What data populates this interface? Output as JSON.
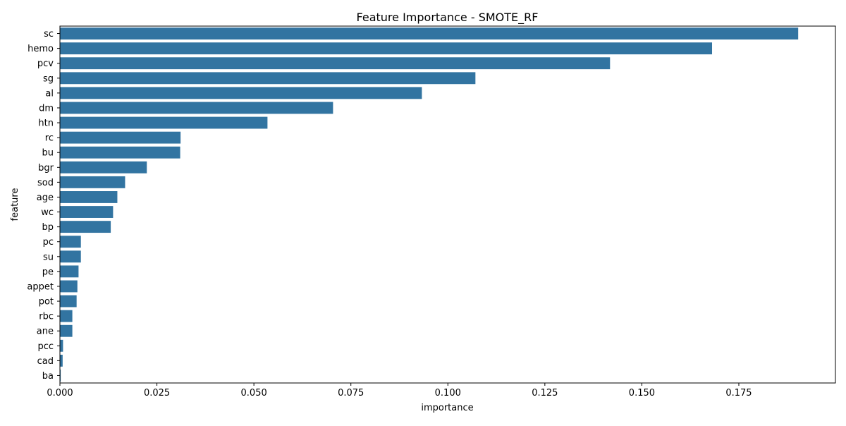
{
  "chart_data": {
    "type": "bar",
    "orientation": "horizontal",
    "title": "Feature Importance - SMOTE_RF",
    "xlabel": "importance",
    "ylabel": "feature",
    "xlim": [
      0,
      0.1999
    ],
    "xticks": [
      0.0,
      0.025,
      0.05,
      0.075,
      0.1,
      0.125,
      0.15,
      0.175
    ],
    "xtick_labels": [
      "0.000",
      "0.025",
      "0.050",
      "0.075",
      "0.100",
      "0.125",
      "0.150",
      "0.175"
    ],
    "grid": false,
    "bar_color": "#3274a1",
    "categories": [
      "sc",
      "hemo",
      "pcv",
      "sg",
      "al",
      "dm",
      "htn",
      "rc",
      "bu",
      "bgr",
      "sod",
      "age",
      "wc",
      "bp",
      "pc",
      "su",
      "pe",
      "appet",
      "pot",
      "rbc",
      "ane",
      "pcc",
      "cad",
      "ba"
    ],
    "values": [
      0.1903,
      0.1681,
      0.1418,
      0.1071,
      0.0933,
      0.0704,
      0.0535,
      0.0311,
      0.031,
      0.0224,
      0.0168,
      0.0148,
      0.0137,
      0.0131,
      0.0054,
      0.0054,
      0.0048,
      0.0045,
      0.0043,
      0.0032,
      0.0032,
      0.0008,
      0.0007,
      0.0002
    ]
  }
}
